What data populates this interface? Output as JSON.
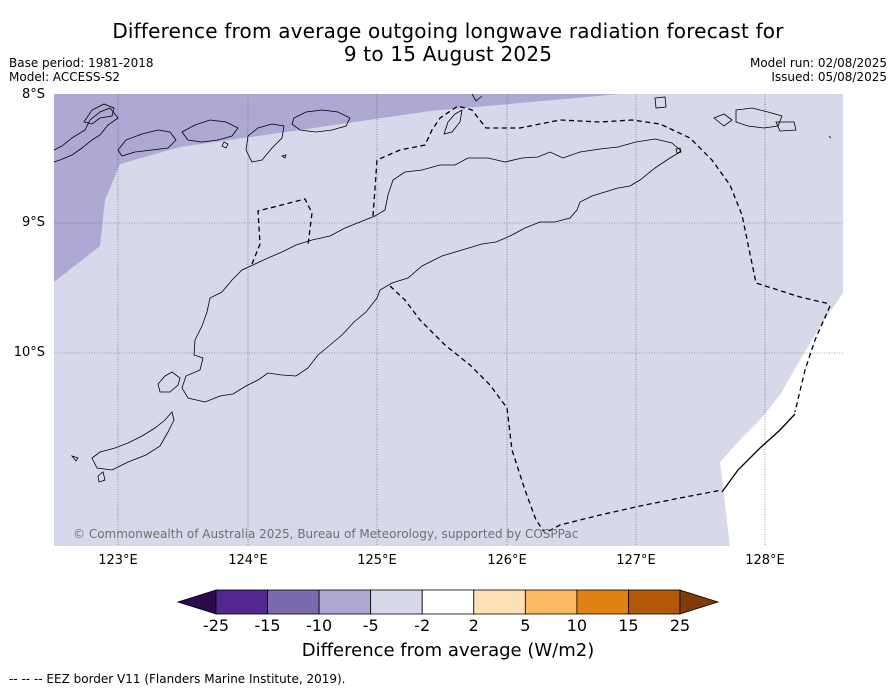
{
  "title": {
    "line1": "Difference from average outgoing longwave radiation forecast for",
    "line2": "9 to 15 August 2025"
  },
  "meta": {
    "base_period": "Base period: 1981-2018",
    "model": "Model: ACCESS-S2",
    "model_run": "Model run: 02/08/2025",
    "issued": "Issued: 05/08/2025"
  },
  "axes": {
    "lat_labels": [
      "8°S",
      "9°S",
      "10°S"
    ],
    "lon_labels": [
      "123°E",
      "124°E",
      "125°E",
      "126°E",
      "127°E",
      "128°E"
    ]
  },
  "copyright": "© Commonwealth of Australia 2025, Bureau of Meteorology, supported by COSPPac",
  "colorbar": {
    "ticks": [
      "-25",
      "-15",
      "-10",
      "-5",
      "-2",
      "2",
      "5",
      "10",
      "15",
      "25"
    ],
    "colors": [
      "#2d0a4e",
      "#54278f",
      "#7a6aad",
      "#ada8d4",
      "#d8d8eb",
      "#ffffff",
      "#fee0b6",
      "#fdb863",
      "#e08214",
      "#b35806",
      "#7f3b08"
    ],
    "label": "Difference from average (W/m2)"
  },
  "legend": {
    "eez": "--  --  -- EEZ border V11 (Flanders Marine Institute, 2019)."
  },
  "map_colors": {
    "light_lavender": "#d8d8eb",
    "lavender": "#ada8d4",
    "white": "#ffffff"
  }
}
